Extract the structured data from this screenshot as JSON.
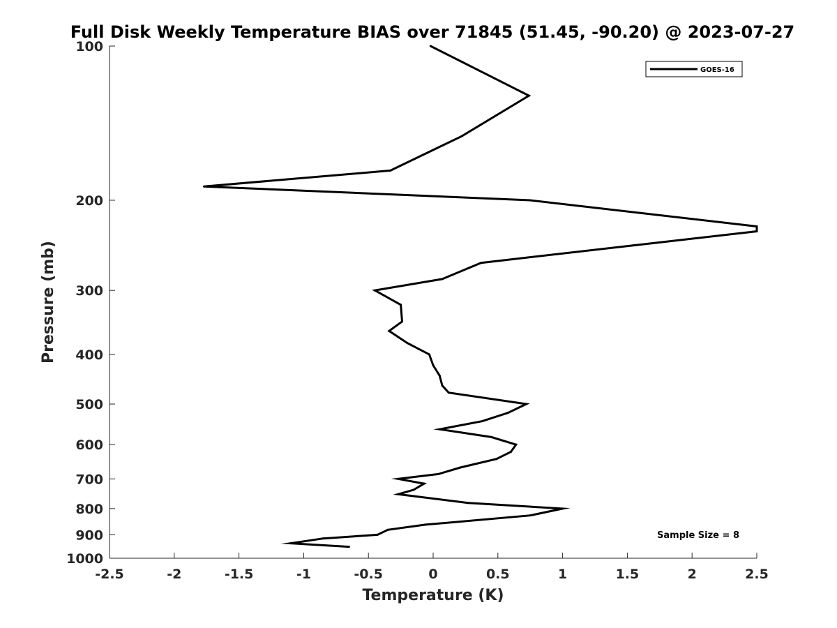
{
  "chart_data": {
    "type": "line",
    "title": "Full Disk Weekly Temperature BIAS over 71845 (51.45, -90.20) @ 2023-07-27",
    "xlabel": "Temperature (K)",
    "ylabel": "Pressure (mb)",
    "xlim": [
      -2.5,
      2.5
    ],
    "ylim": [
      100,
      1000
    ],
    "y_scale": "log",
    "y_reversed": true,
    "x_ticks": [
      -2.5,
      -2,
      -1.5,
      -1,
      -0.5,
      0,
      0.5,
      1,
      1.5,
      2,
      2.5
    ],
    "x_tick_labels": [
      "-2.5",
      "-2",
      "-1.5",
      "-1",
      "-0.5",
      "0",
      "0.5",
      "1",
      "1.5",
      "2",
      "2.5"
    ],
    "y_ticks": [
      100,
      200,
      300,
      400,
      500,
      600,
      700,
      800,
      900,
      1000
    ],
    "y_tick_labels": [
      "100",
      "200",
      "300",
      "400",
      "500",
      "600",
      "700",
      "800",
      "900",
      "1000"
    ],
    "grid": false,
    "legend_position": "top-right",
    "series": [
      {
        "name": "GOES-16",
        "color": "#000000",
        "points": [
          {
            "x": -0.02,
            "p": 100
          },
          {
            "x": 0.74,
            "p": 125
          },
          {
            "x": 0.22,
            "p": 150
          },
          {
            "x": -0.33,
            "p": 175
          },
          {
            "x": -1.77,
            "p": 188
          },
          {
            "x": 0.75,
            "p": 200
          },
          {
            "x": 2.5,
            "p": 225
          },
          {
            "x": 2.5,
            "p": 230
          },
          {
            "x": 1.55,
            "p": 245
          },
          {
            "x": 0.37,
            "p": 265
          },
          {
            "x": 0.07,
            "p": 285
          },
          {
            "x": -0.45,
            "p": 300
          },
          {
            "x": -0.25,
            "p": 320
          },
          {
            "x": -0.24,
            "p": 345
          },
          {
            "x": -0.34,
            "p": 360
          },
          {
            "x": -0.2,
            "p": 380
          },
          {
            "x": -0.03,
            "p": 400
          },
          {
            "x": 0,
            "p": 420
          },
          {
            "x": 0.05,
            "p": 440
          },
          {
            "x": 0.07,
            "p": 460
          },
          {
            "x": 0.12,
            "p": 475
          },
          {
            "x": 0.72,
            "p": 500
          },
          {
            "x": 0.58,
            "p": 520
          },
          {
            "x": 0.38,
            "p": 540
          },
          {
            "x": 0.05,
            "p": 560
          },
          {
            "x": 0.45,
            "p": 580
          },
          {
            "x": 0.64,
            "p": 600
          },
          {
            "x": 0.6,
            "p": 620
          },
          {
            "x": 0.49,
            "p": 640
          },
          {
            "x": 0.21,
            "p": 665
          },
          {
            "x": 0.04,
            "p": 685
          },
          {
            "x": -0.27,
            "p": 700
          },
          {
            "x": -0.07,
            "p": 715
          },
          {
            "x": -0.15,
            "p": 735
          },
          {
            "x": -0.27,
            "p": 750
          },
          {
            "x": 0.27,
            "p": 780
          },
          {
            "x": 1,
            "p": 800
          },
          {
            "x": 0.75,
            "p": 825
          },
          {
            "x": -0.06,
            "p": 860
          },
          {
            "x": -0.35,
            "p": 880
          },
          {
            "x": -0.43,
            "p": 900
          },
          {
            "x": -0.85,
            "p": 915
          },
          {
            "x": -1.1,
            "p": 935
          },
          {
            "x": -0.65,
            "p": 950
          }
        ]
      }
    ],
    "annotations": [
      {
        "text": "Sample Size = 8",
        "position": "bottom-right"
      }
    ]
  }
}
